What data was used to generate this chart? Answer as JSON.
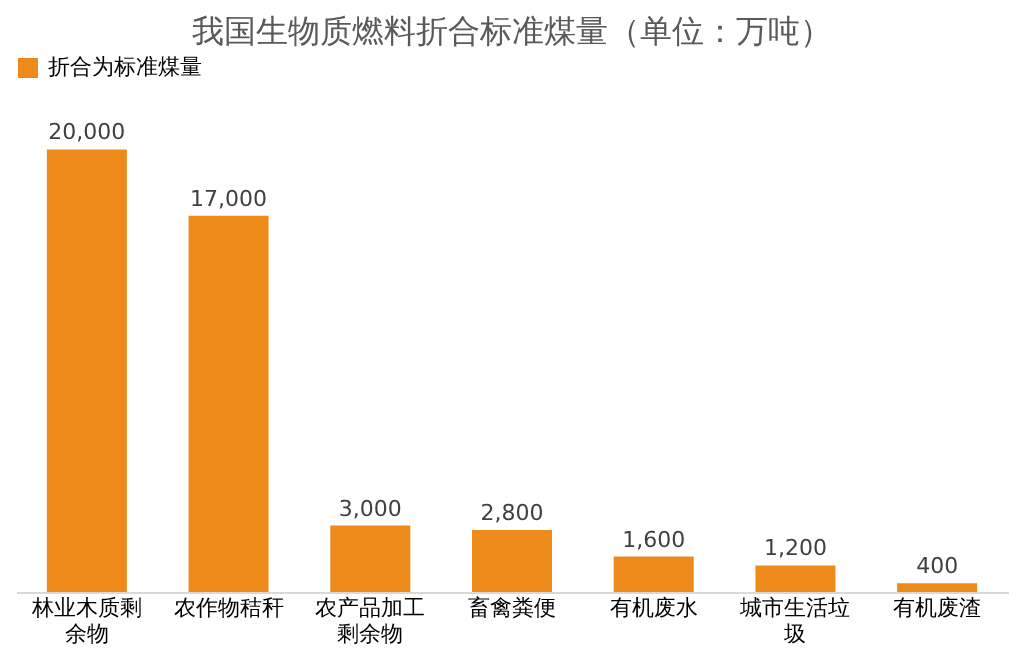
{
  "chart_data": {
    "type": "bar",
    "title": "我国生物质燃料折合标准煤量（单位：万吨）",
    "categories": [
      "林业木质剩余物",
      "农作物秸秆",
      "农产品加工剩余物",
      "畜禽粪便",
      "有机废水",
      "城市生活垃圾",
      "有机废渣"
    ],
    "series": [
      {
        "name": "折合为标准煤量",
        "color": "#ee8a1a",
        "values": [
          20000,
          17000,
          3000,
          2800,
          1600,
          1200,
          400
        ],
        "value_labels": [
          "20,000",
          "17,000",
          "3,000",
          "2,800",
          "1,600",
          "1,200",
          "400"
        ]
      }
    ],
    "legend": "top",
    "grid": false
  }
}
